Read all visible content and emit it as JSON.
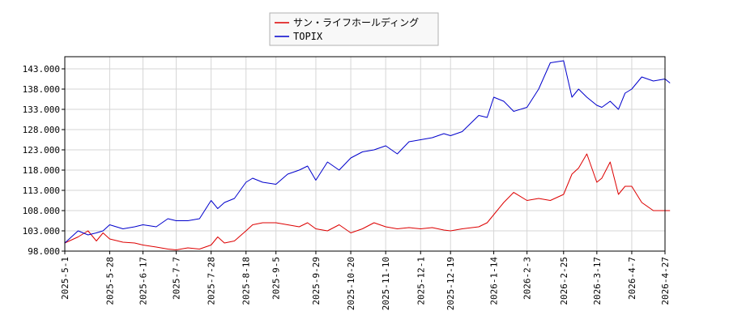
{
  "chart_data": {
    "type": "line",
    "title": "",
    "xlabel": "",
    "ylabel": "",
    "ylim": [
      98.0,
      146.0
    ],
    "grid": true,
    "legend_position": "top-center",
    "y_ticks": [
      "98.000",
      "103.000",
      "108.000",
      "113.000",
      "118.000",
      "123.000",
      "128.000",
      "133.000",
      "138.000",
      "143.000"
    ],
    "x_ticks": [
      "2025-5-1",
      "2025-5-28",
      "2025-6-17",
      "2025-7-7",
      "2025-7-28",
      "2025-8-18",
      "2025-9-5",
      "2025-9-29",
      "2025-10-20",
      "2025-11-10",
      "2025-12-1",
      "2025-12-19",
      "2026-1-14",
      "2026-2-3",
      "2026-2-25",
      "2026-3-17",
      "2026-4-7",
      "2026-4-27"
    ],
    "series": [
      {
        "name": "サン・ライフホールディング",
        "color": "#dd0000",
        "points": [
          [
            "2025-5-1",
            100.0
          ],
          [
            "2025-5-9",
            101.5
          ],
          [
            "2025-5-15",
            103.0
          ],
          [
            "2025-5-20",
            100.5
          ],
          [
            "2025-5-24",
            102.5
          ],
          [
            "2025-5-28",
            101.0
          ],
          [
            "2025-6-5",
            100.2
          ],
          [
            "2025-6-12",
            100.0
          ],
          [
            "2025-6-17",
            99.5
          ],
          [
            "2025-6-25",
            99.0
          ],
          [
            "2025-7-2",
            98.5
          ],
          [
            "2025-7-7",
            98.3
          ],
          [
            "2025-7-14",
            98.8
          ],
          [
            "2025-7-21",
            98.5
          ],
          [
            "2025-7-28",
            99.5
          ],
          [
            "2025-8-1",
            101.5
          ],
          [
            "2025-8-5",
            100.0
          ],
          [
            "2025-8-11",
            100.5
          ],
          [
            "2025-8-18",
            103.0
          ],
          [
            "2025-8-22",
            104.5
          ],
          [
            "2025-8-28",
            105.0
          ],
          [
            "2025-9-5",
            105.0
          ],
          [
            "2025-9-12",
            104.5
          ],
          [
            "2025-9-19",
            104.0
          ],
          [
            "2025-9-24",
            105.0
          ],
          [
            "2025-9-29",
            103.5
          ],
          [
            "2025-10-6",
            103.0
          ],
          [
            "2025-10-13",
            104.5
          ],
          [
            "2025-10-20",
            102.5
          ],
          [
            "2025-10-27",
            103.5
          ],
          [
            "2025-11-3",
            105.0
          ],
          [
            "2025-11-10",
            104.0
          ],
          [
            "2025-11-17",
            103.5
          ],
          [
            "2025-11-24",
            103.8
          ],
          [
            "2025-12-1",
            103.5
          ],
          [
            "2025-12-8",
            103.8
          ],
          [
            "2025-12-15",
            103.2
          ],
          [
            "2025-12-19",
            103.0
          ],
          [
            "2025-12-26",
            103.5
          ],
          [
            "2026-1-5",
            104.0
          ],
          [
            "2026-1-10",
            105.0
          ],
          [
            "2026-1-14",
            107.0
          ],
          [
            "2026-1-20",
            110.0
          ],
          [
            "2026-1-26",
            112.5
          ],
          [
            "2026-2-3",
            110.5
          ],
          [
            "2026-2-10",
            111.0
          ],
          [
            "2026-2-17",
            110.5
          ],
          [
            "2026-2-25",
            112.0
          ],
          [
            "2026-3-2",
            117.0
          ],
          [
            "2026-3-6",
            118.5
          ],
          [
            "2026-3-11",
            122.0
          ],
          [
            "2026-3-17",
            115.0
          ],
          [
            "2026-3-20",
            116.0
          ],
          [
            "2026-3-25",
            120.0
          ],
          [
            "2026-3-30",
            112.0
          ],
          [
            "2026-4-3",
            114.0
          ],
          [
            "2026-4-7",
            114.0
          ],
          [
            "2026-4-13",
            110.0
          ],
          [
            "2026-4-20",
            108.0
          ],
          [
            "2026-4-27",
            108.0
          ],
          [
            "2026-4-30",
            108.0
          ]
        ]
      },
      {
        "name": "TOPIX",
        "color": "#0000cc",
        "points": [
          [
            "2025-5-1",
            100.0
          ],
          [
            "2025-5-9",
            103.0
          ],
          [
            "2025-5-15",
            102.0
          ],
          [
            "2025-5-20",
            102.5
          ],
          [
            "2025-5-24",
            103.0
          ],
          [
            "2025-5-28",
            104.5
          ],
          [
            "2025-6-5",
            103.5
          ],
          [
            "2025-6-12",
            104.0
          ],
          [
            "2025-6-17",
            104.5
          ],
          [
            "2025-6-25",
            104.0
          ],
          [
            "2025-7-2",
            106.0
          ],
          [
            "2025-7-7",
            105.5
          ],
          [
            "2025-7-14",
            105.5
          ],
          [
            "2025-7-21",
            106.0
          ],
          [
            "2025-7-28",
            110.5
          ],
          [
            "2025-8-1",
            108.5
          ],
          [
            "2025-8-5",
            110.0
          ],
          [
            "2025-8-11",
            111.0
          ],
          [
            "2025-8-18",
            115.0
          ],
          [
            "2025-8-22",
            116.0
          ],
          [
            "2025-8-28",
            115.0
          ],
          [
            "2025-9-5",
            114.5
          ],
          [
            "2025-9-12",
            117.0
          ],
          [
            "2025-9-19",
            118.0
          ],
          [
            "2025-9-24",
            119.0
          ],
          [
            "2025-9-29",
            115.5
          ],
          [
            "2025-10-6",
            120.0
          ],
          [
            "2025-10-13",
            118.0
          ],
          [
            "2025-10-20",
            121.0
          ],
          [
            "2025-10-27",
            122.5
          ],
          [
            "2025-11-3",
            123.0
          ],
          [
            "2025-11-10",
            124.0
          ],
          [
            "2025-11-17",
            122.0
          ],
          [
            "2025-11-24",
            125.0
          ],
          [
            "2025-12-1",
            125.5
          ],
          [
            "2025-12-8",
            126.0
          ],
          [
            "2025-12-15",
            127.0
          ],
          [
            "2025-12-19",
            126.5
          ],
          [
            "2025-12-26",
            127.5
          ],
          [
            "2026-1-5",
            131.5
          ],
          [
            "2026-1-10",
            131.0
          ],
          [
            "2026-1-14",
            136.0
          ],
          [
            "2026-1-20",
            135.0
          ],
          [
            "2026-1-26",
            132.5
          ],
          [
            "2026-2-3",
            133.5
          ],
          [
            "2026-2-10",
            138.0
          ],
          [
            "2026-2-17",
            144.5
          ],
          [
            "2026-2-25",
            145.0
          ],
          [
            "2026-3-2",
            136.0
          ],
          [
            "2026-3-6",
            138.0
          ],
          [
            "2026-3-11",
            136.0
          ],
          [
            "2026-3-17",
            134.0
          ],
          [
            "2026-3-20",
            133.5
          ],
          [
            "2026-3-25",
            135.0
          ],
          [
            "2026-3-30",
            133.0
          ],
          [
            "2026-4-3",
            137.0
          ],
          [
            "2026-4-7",
            138.0
          ],
          [
            "2026-4-13",
            141.0
          ],
          [
            "2026-4-20",
            140.0
          ],
          [
            "2026-4-27",
            140.5
          ],
          [
            "2026-4-30",
            139.5
          ]
        ]
      }
    ]
  }
}
